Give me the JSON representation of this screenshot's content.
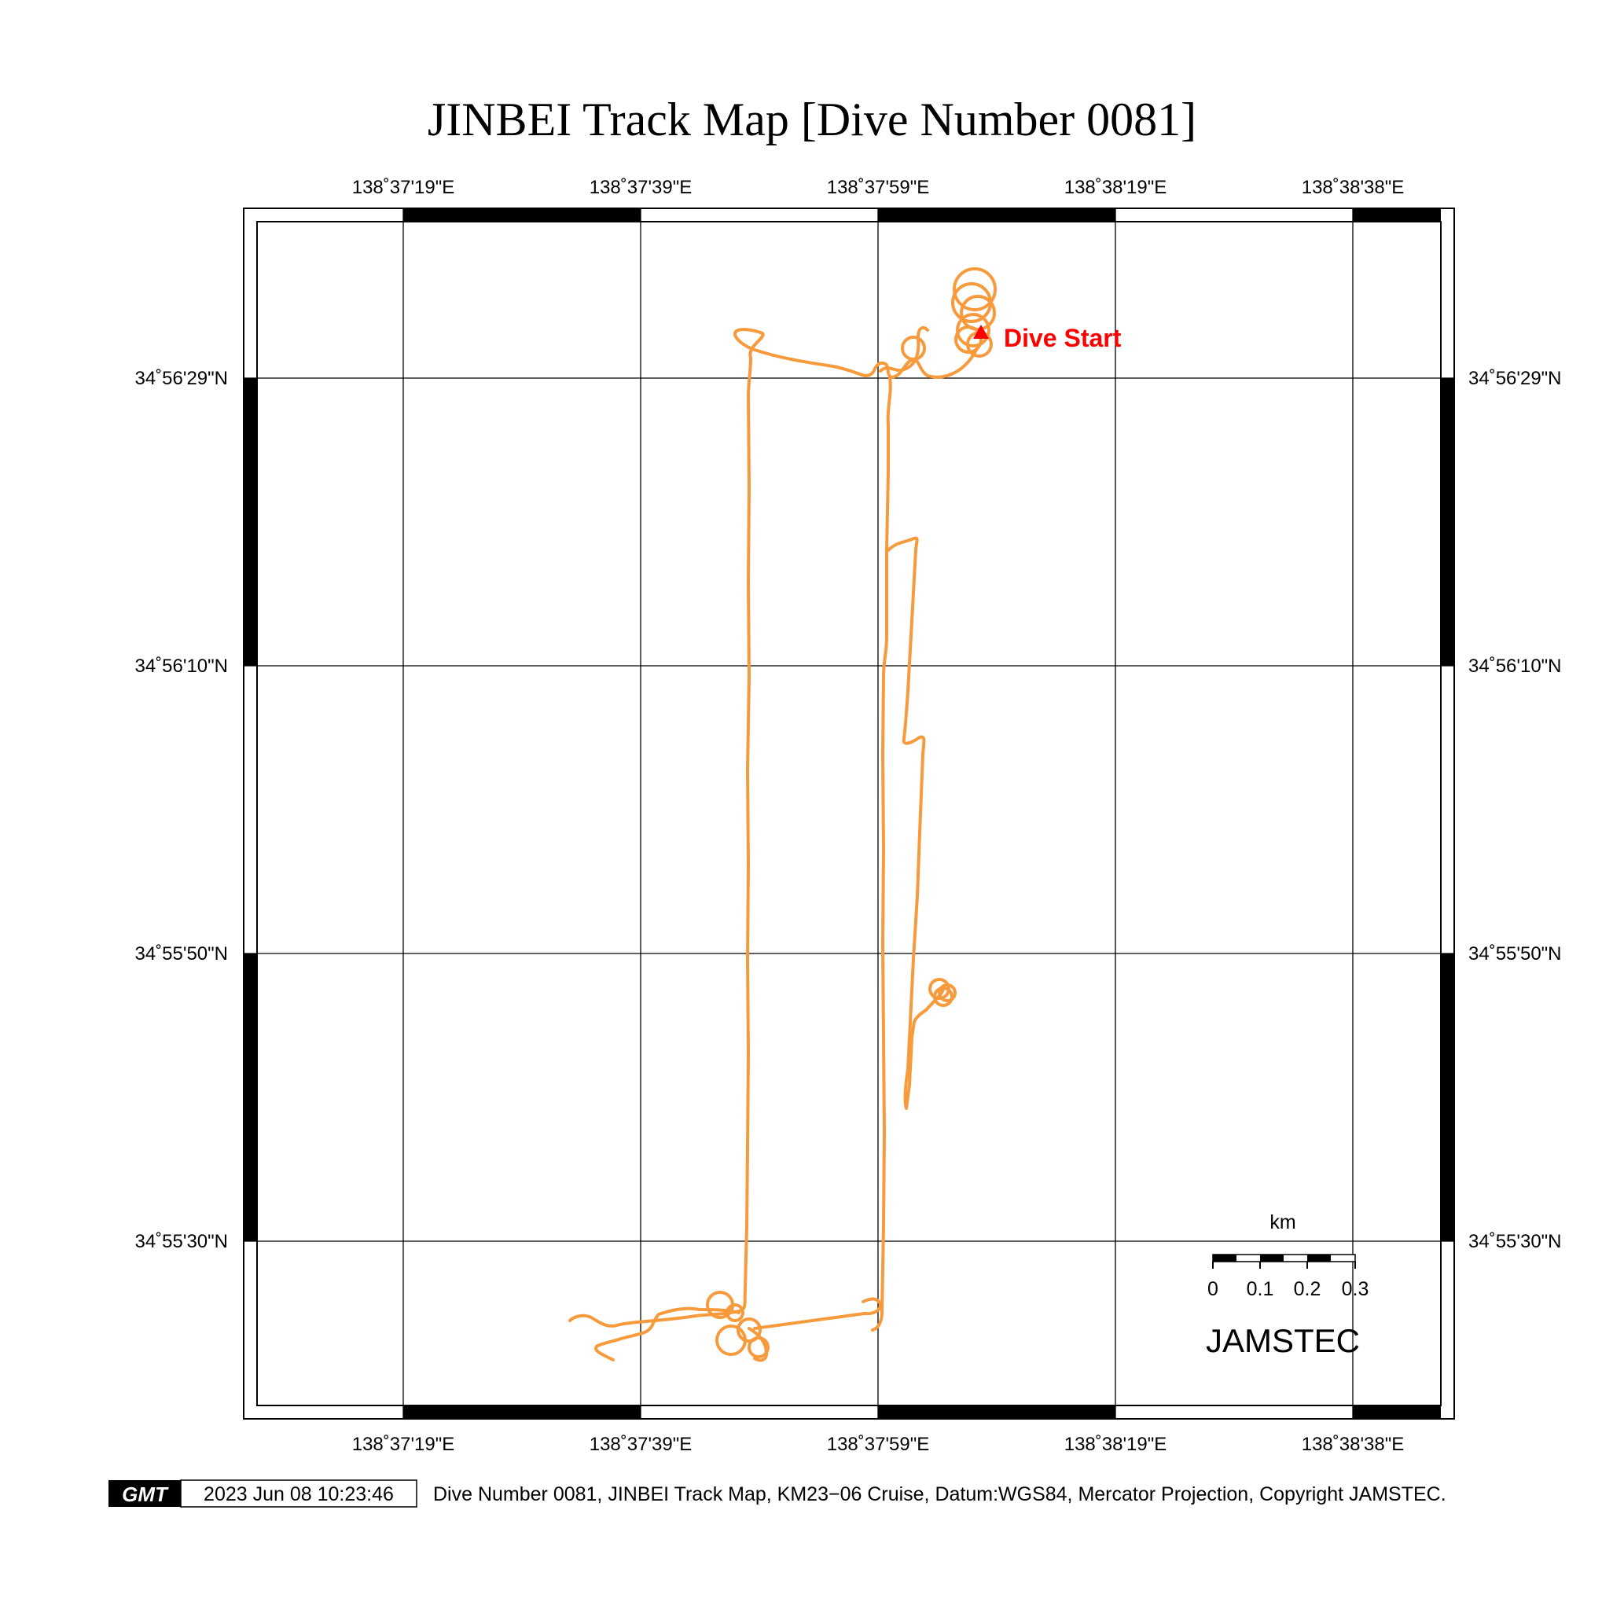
{
  "title": "JINBEI Track Map [Dive Number 0081]",
  "colors": {
    "track": "#f79a3c",
    "dive_start": "#ff0000",
    "frame": "#000000",
    "grid": "#000000"
  },
  "axes": {
    "lon_labels": [
      "138˚37'19\"E",
      "138˚37'39\"E",
      "138˚37'59\"E",
      "138˚38'19\"E",
      "138˚38'38\"E"
    ],
    "lat_labels": [
      "34˚56'29\"N",
      "34˚56'10\"N",
      "34˚55'50\"N",
      "34˚55'30\"N"
    ]
  },
  "dive_start": {
    "label": "Dive Start",
    "icon": "triangle-marker-icon"
  },
  "scale_bar": {
    "unit": "km",
    "ticks": [
      "0",
      "0.1",
      "0.2",
      "0.3"
    ]
  },
  "brand": "JAMSTEC",
  "footer": {
    "logo_text": "GMT",
    "timestamp": "2023 Jun 08 10:23:46",
    "caption": "Dive Number 0081, JINBEI Track Map, KM23−06 Cruise, Datum:WGS84, Mercator Projection, Copyright JAMSTEC."
  }
}
